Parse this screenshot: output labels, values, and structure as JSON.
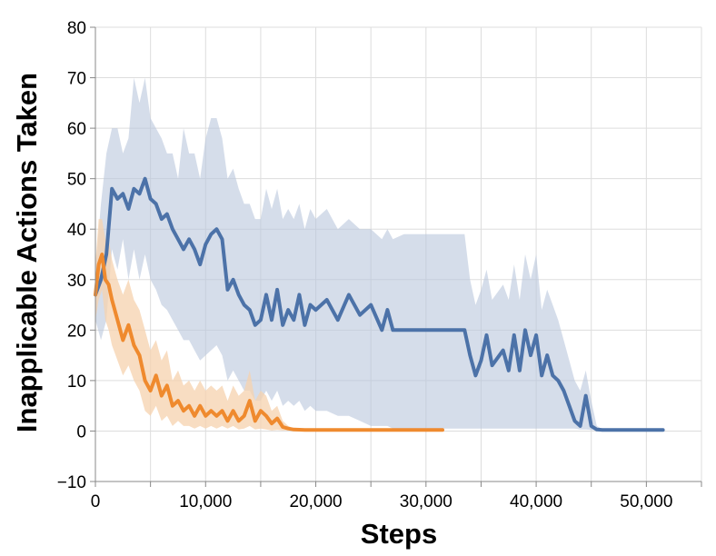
{
  "chart_data": {
    "type": "line",
    "title": "",
    "xlabel": "Steps",
    "ylabel": "Inapplicable Actions Taken",
    "xlim": [
      0,
      55000
    ],
    "ylim": [
      -10,
      80
    ],
    "grid": true,
    "legend": "none",
    "x_ticks": [
      {
        "value": 0,
        "label": "0"
      },
      {
        "value": 10000,
        "label": "10,000"
      },
      {
        "value": 20000,
        "label": "20,000"
      },
      {
        "value": 30000,
        "label": "30,000"
      },
      {
        "value": 40000,
        "label": "40,000"
      },
      {
        "value": 50000,
        "label": "50,000"
      }
    ],
    "y_ticks": [
      {
        "value": -10,
        "label": "−10"
      },
      {
        "value": 0,
        "label": "0"
      },
      {
        "value": 10,
        "label": "10"
      },
      {
        "value": 20,
        "label": "20"
      },
      {
        "value": 30,
        "label": "30"
      },
      {
        "value": 40,
        "label": "40"
      },
      {
        "value": 50,
        "label": "50"
      },
      {
        "value": 60,
        "label": "60"
      },
      {
        "value": 70,
        "label": "70"
      },
      {
        "value": 80,
        "label": "80"
      }
    ],
    "series": [
      {
        "color": "#4c72a8",
        "band_color": "#b9c7dc",
        "x": [
          0,
          500,
          1000,
          1500,
          2000,
          2500,
          3000,
          3500,
          4000,
          4500,
          5000,
          5500,
          6000,
          6500,
          7000,
          7500,
          8000,
          8500,
          9000,
          9500,
          10000,
          10500,
          11000,
          11500,
          12000,
          12500,
          13000,
          13500,
          14000,
          14500,
          15000,
          15500,
          16000,
          16500,
          17000,
          17500,
          18000,
          18500,
          19000,
          19500,
          20000,
          21000,
          22000,
          23000,
          24000,
          25000,
          26000,
          26500,
          27000,
          28000,
          30000,
          32000,
          33500,
          34000,
          34500,
          35000,
          35500,
          36000,
          37000,
          37500,
          38000,
          38500,
          39000,
          39500,
          40000,
          40500,
          41000,
          41500,
          42000,
          42500,
          43000,
          43500,
          44000,
          44500,
          45000,
          45500,
          46000,
          47000,
          48000,
          49000,
          50000,
          51000,
          51500
        ],
        "values": [
          27,
          30,
          35,
          48,
          46,
          47,
          44,
          48,
          47,
          50,
          46,
          45,
          42,
          43,
          40,
          38,
          36,
          38,
          36,
          33,
          37,
          39,
          40,
          38,
          28,
          30,
          27,
          25,
          24,
          21,
          22,
          27,
          22,
          28,
          21,
          24,
          22,
          27,
          21,
          25,
          24,
          26,
          22,
          27,
          23,
          25,
          20,
          24,
          20,
          20,
          20,
          20,
          20,
          15,
          11,
          14,
          19,
          13,
          16,
          12,
          19,
          12,
          20,
          15,
          19,
          11,
          15,
          11,
          10,
          8,
          5,
          2,
          1,
          7,
          1,
          0.3,
          0.2,
          0.2,
          0.2,
          0.2,
          0.2,
          0.2,
          0.2
        ],
        "upper": [
          32,
          45,
          55,
          60,
          60,
          55,
          58,
          70,
          65,
          70,
          62,
          60,
          58,
          55,
          55,
          50,
          60,
          55,
          55,
          50,
          58,
          62,
          62,
          58,
          50,
          52,
          48,
          45,
          45,
          42,
          42,
          48,
          44,
          48,
          42,
          44,
          42,
          45,
          40,
          44,
          42,
          44,
          40,
          42,
          40,
          40,
          38,
          40,
          38,
          39,
          39,
          39,
          39,
          30,
          25,
          28,
          32,
          26,
          29,
          26,
          33,
          26,
          35,
          30,
          35,
          24,
          28,
          25,
          22,
          18,
          14,
          10,
          8,
          12,
          6,
          1,
          0.4,
          0.3,
          0.3,
          0.3,
          0.3,
          0.3,
          0.3
        ],
        "lower": [
          22,
          18,
          22,
          36,
          32,
          38,
          30,
          36,
          30,
          35,
          30,
          28,
          25,
          24,
          22,
          20,
          18,
          18,
          16,
          14,
          15,
          16,
          17,
          15,
          10,
          12,
          10,
          8,
          8,
          6,
          6,
          8,
          6,
          8,
          5,
          6,
          5,
          6,
          4,
          5,
          4,
          4,
          3,
          3,
          2,
          1,
          1,
          1,
          0.5,
          0.5,
          0.5,
          0.5,
          0.5,
          0.5,
          0.5,
          0.5,
          0.5,
          0.5,
          0.5,
          0.5,
          0.5,
          0.5,
          0.5,
          0.5,
          0.5,
          0.5,
          0.5,
          0.5,
          0.5,
          0.5,
          0.5,
          0.5,
          0.3,
          0.3,
          0.2,
          0.1,
          0.1,
          0.1,
          0.1,
          0.1,
          0.1,
          0.1,
          0.1
        ]
      },
      {
        "color": "#ef8a2e",
        "band_color": "#f6d2ae",
        "x": [
          0,
          300,
          600,
          900,
          1200,
          1500,
          2000,
          2500,
          3000,
          3500,
          4000,
          4500,
          5000,
          5500,
          6000,
          6500,
          7000,
          7500,
          8000,
          8500,
          9000,
          9500,
          10000,
          10500,
          11000,
          11500,
          12000,
          12500,
          13000,
          13500,
          14000,
          14500,
          15000,
          15500,
          16000,
          16500,
          17000,
          17500,
          18000,
          19000,
          20000,
          22000,
          25000,
          28000,
          31500
        ],
        "values": [
          27,
          33,
          35,
          30,
          29,
          26,
          22,
          18,
          21,
          17,
          15,
          10,
          8,
          11,
          7,
          9,
          5,
          6,
          4,
          5,
          3,
          5,
          3,
          4,
          3,
          4,
          2,
          4,
          2,
          3,
          6,
          2,
          4,
          3,
          1.5,
          2.5,
          0.8,
          0.5,
          0.3,
          0.2,
          0.2,
          0.2,
          0.2,
          0.2,
          0.2
        ],
        "upper": [
          33,
          42,
          42,
          38,
          38,
          34,
          30,
          27,
          30,
          26,
          24,
          20,
          16,
          18,
          14,
          16,
          10,
          12,
          9,
          10,
          8,
          10,
          8,
          9,
          8,
          9,
          6,
          9,
          7,
          8,
          12,
          6,
          8,
          7,
          4,
          5,
          2,
          1,
          0.5,
          0.3,
          0.3,
          0.3,
          0.3,
          0.3,
          0.3
        ],
        "lower": [
          22,
          26,
          28,
          22,
          20,
          17,
          14,
          11,
          13,
          10,
          8,
          4,
          3,
          5,
          2,
          3,
          1,
          2,
          1,
          1,
          0.5,
          1,
          0.5,
          1,
          0.5,
          1,
          0.5,
          1,
          0.3,
          0.5,
          1,
          0.3,
          0.5,
          0.3,
          0.1,
          0.2,
          0.1,
          0.1,
          0.1,
          0.1,
          0.1,
          0.1,
          0.1,
          0.1,
          0.1
        ]
      }
    ]
  }
}
